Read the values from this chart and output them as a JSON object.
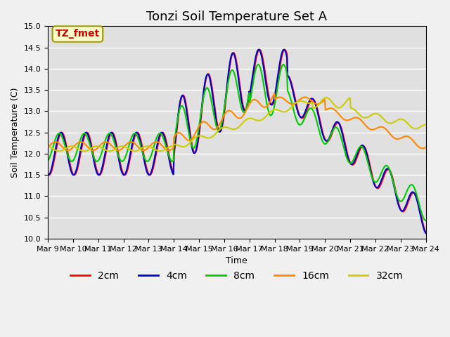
{
  "title": "Tonzi Soil Temperature Set A",
  "xlabel": "Time",
  "ylabel": "Soil Temperature (C)",
  "ylim": [
    10.0,
    15.0
  ],
  "yticks": [
    10.0,
    10.5,
    11.0,
    11.5,
    12.0,
    12.5,
    13.0,
    13.5,
    14.0,
    14.5,
    15.0
  ],
  "xtick_labels": [
    "Mar 9",
    "Mar 10",
    "Mar 11",
    "Mar 12",
    "Mar 13",
    "Mar 14",
    "Mar 15",
    "Mar 16",
    "Mar 17",
    "Mar 18",
    "Mar 19",
    "Mar 20",
    "Mar 21",
    "Mar 22",
    "Mar 23",
    "Mar 24"
  ],
  "xtick_positions": [
    0,
    1,
    2,
    3,
    4,
    5,
    6,
    7,
    8,
    9,
    10,
    11,
    12,
    13,
    14,
    15
  ],
  "series_colors": [
    "#ff0000",
    "#0000cc",
    "#00cc00",
    "#ff8800",
    "#cccc00"
  ],
  "series_labels": [
    "2cm",
    "4cm",
    "8cm",
    "16cm",
    "32cm"
  ],
  "annotation_text": "TZ_fmet",
  "annotation_color": "#cc0000",
  "annotation_bg": "#ffffcc",
  "bg_color": "#e0e0e0",
  "grid_color": "#ffffff",
  "title_fontsize": 13,
  "label_fontsize": 9,
  "tick_fontsize": 8,
  "legend_fontsize": 10
}
